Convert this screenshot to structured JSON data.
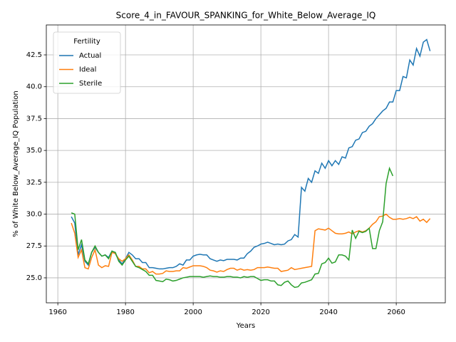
{
  "chart_data": {
    "type": "line",
    "title": "Score_4_in_FAVOUR_SPANKING_for_White_Below_Average_IQ",
    "x_label": "Years",
    "y_label": "% of White Below_Average_IQ Population",
    "legend_title": "Fertility",
    "legend_position": "upper left",
    "grid": true,
    "x": [
      1964,
      1965,
      1966,
      1967,
      1968,
      1969,
      1970,
      1971,
      1972,
      1973,
      1974,
      1975,
      1976,
      1977,
      1978,
      1979,
      1980,
      1981,
      1982,
      1983,
      1984,
      1985,
      1986,
      1987,
      1988,
      1989,
      1990,
      1991,
      1992,
      1993,
      1994,
      1995,
      1996,
      1997,
      1998,
      1999,
      2000,
      2001,
      2002,
      2003,
      2004,
      2005,
      2006,
      2007,
      2008,
      2009,
      2010,
      2011,
      2012,
      2013,
      2014,
      2015,
      2016,
      2017,
      2018,
      2019,
      2020,
      2021,
      2022,
      2023,
      2024,
      2025,
      2026,
      2027,
      2028,
      2029,
      2030,
      2031,
      2032,
      2033,
      2034,
      2035,
      2036,
      2037,
      2038,
      2039,
      2040,
      2041,
      2042,
      2043,
      2044,
      2045,
      2046,
      2047,
      2048,
      2049,
      2050,
      2051,
      2052,
      2053,
      2054,
      2055,
      2056,
      2057,
      2058,
      2059,
      2060,
      2061,
      2062,
      2063,
      2064,
      2065,
      2066,
      2067,
      2068,
      2069,
      2070
    ],
    "series": [
      {
        "name": "Actual",
        "color": "#1f77b4",
        "values": [
          29.8,
          29.3,
          26.8,
          27.6,
          26.3,
          26.0,
          27.0,
          27.4,
          27.0,
          26.7,
          26.8,
          26.6,
          27.1,
          26.9,
          26.4,
          26.1,
          26.5,
          27.0,
          26.8,
          26.5,
          26.5,
          26.2,
          26.2,
          25.8,
          25.8,
          25.75,
          25.7,
          25.7,
          25.75,
          25.8,
          25.8,
          25.9,
          26.1,
          26.0,
          26.4,
          26.4,
          26.7,
          26.8,
          26.85,
          26.8,
          26.8,
          26.5,
          26.4,
          26.3,
          26.4,
          26.35,
          26.45,
          26.45,
          26.45,
          26.4,
          26.55,
          26.55,
          26.9,
          27.1,
          27.4,
          27.5,
          27.65,
          27.7,
          27.8,
          27.7,
          27.6,
          27.65,
          27.6,
          27.65,
          27.9,
          28.0,
          28.4,
          28.2,
          32.1,
          31.8,
          32.8,
          32.5,
          33.4,
          33.2,
          34.0,
          33.6,
          34.2,
          33.8,
          34.2,
          33.9,
          34.5,
          34.4,
          35.2,
          35.3,
          35.8,
          35.9,
          36.4,
          36.5,
          36.9,
          37.1,
          37.5,
          37.8,
          38.1,
          38.3,
          38.8,
          38.8,
          39.7,
          39.7,
          40.8,
          40.7,
          42.1,
          41.7,
          43.0,
          42.4,
          43.5,
          43.7,
          42.8
        ]
      },
      {
        "name": "Ideal",
        "color": "#ff7f0e",
        "values": [
          29.3,
          28.5,
          26.6,
          27.2,
          25.8,
          25.7,
          26.6,
          27.2,
          26.0,
          25.8,
          25.95,
          25.9,
          27.0,
          26.9,
          26.5,
          26.3,
          26.5,
          26.8,
          26.4,
          25.9,
          25.9,
          25.7,
          25.7,
          25.4,
          25.5,
          25.3,
          25.3,
          25.35,
          25.55,
          25.5,
          25.5,
          25.55,
          25.55,
          25.8,
          25.75,
          25.85,
          25.95,
          25.95,
          25.95,
          25.9,
          25.8,
          25.6,
          25.55,
          25.45,
          25.55,
          25.5,
          25.65,
          25.75,
          25.75,
          25.6,
          25.7,
          25.6,
          25.65,
          25.6,
          25.65,
          25.8,
          25.8,
          25.8,
          25.85,
          25.8,
          25.75,
          25.75,
          25.5,
          25.55,
          25.6,
          25.8,
          25.65,
          25.7,
          25.75,
          25.8,
          25.85,
          25.9,
          28.7,
          28.85,
          28.8,
          28.75,
          28.9,
          28.7,
          28.5,
          28.45,
          28.45,
          28.5,
          28.6,
          28.45,
          28.6,
          28.7,
          28.6,
          28.7,
          28.9,
          29.2,
          29.4,
          29.8,
          29.85,
          30.0,
          29.75,
          29.6,
          29.6,
          29.65,
          29.6,
          29.65,
          29.75,
          29.65,
          29.8,
          29.45,
          29.6,
          29.35,
          29.65
        ]
      },
      {
        "name": "Sterile",
        "color": "#2ca02c",
        "values": [
          30.1,
          30.0,
          27.2,
          28.0,
          26.4,
          26.1,
          27.0,
          27.5,
          27.0,
          26.7,
          26.8,
          26.5,
          27.1,
          27.0,
          26.3,
          26.0,
          26.4,
          26.7,
          26.3,
          25.9,
          25.8,
          25.65,
          25.5,
          25.2,
          25.2,
          24.8,
          24.75,
          24.7,
          24.9,
          24.85,
          24.75,
          24.8,
          24.9,
          25.0,
          25.05,
          25.1,
          25.1,
          25.1,
          25.1,
          25.05,
          25.1,
          25.15,
          25.1,
          25.1,
          25.05,
          25.05,
          25.1,
          25.1,
          25.05,
          25.05,
          25.0,
          25.1,
          25.05,
          25.1,
          25.1,
          24.95,
          24.8,
          24.85,
          24.85,
          24.75,
          24.75,
          24.45,
          24.4,
          24.65,
          24.75,
          24.45,
          24.25,
          24.3,
          24.6,
          24.65,
          24.75,
          24.85,
          25.3,
          25.35,
          26.1,
          26.2,
          26.55,
          26.15,
          26.25,
          26.8,
          26.8,
          26.7,
          26.4,
          28.75,
          28.1,
          28.65,
          28.55,
          28.65,
          28.9,
          27.3,
          27.3,
          28.7,
          29.4,
          32.4,
          33.6,
          33.0,
          null,
          null,
          null,
          null,
          null,
          null,
          null,
          null,
          null,
          null,
          null
        ]
      }
    ],
    "xlim": [
      1956.6,
      2074.5
    ],
    "xticks": [
      1960,
      1980,
      2000,
      2020,
      2040,
      2060
    ],
    "ylim": [
      23.04,
      44.85
    ],
    "yticks": [
      {
        "value": 25.0,
        "label": "25.0"
      },
      27.5,
      {
        "value": 30.0,
        "label": "30.0"
      },
      32.5,
      {
        "value": 35.0,
        "label": "35.0"
      },
      37.5,
      {
        "value": 40.0,
        "label": "40.0"
      },
      42.5
    ]
  }
}
